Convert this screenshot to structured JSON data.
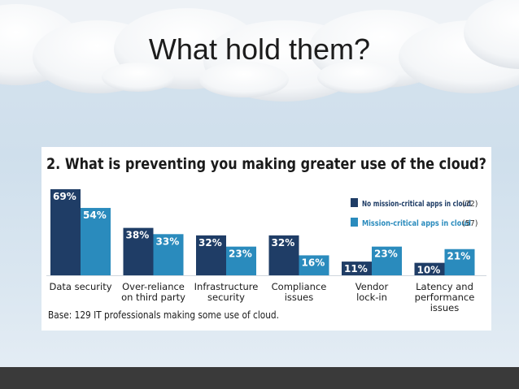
{
  "slide": {
    "title": "What hold them?"
  },
  "chart_data": {
    "type": "bar",
    "title": "2. What is preventing you making greater use of the cloud?",
    "categories": [
      [
        "Data security"
      ],
      [
        "Over-reliance",
        "on third party"
      ],
      [
        "Infrastructure",
        "security"
      ],
      [
        "Compliance",
        "issues"
      ],
      [
        "Vendor",
        "lock-in"
      ],
      [
        "Latency and",
        "performance",
        "issues"
      ]
    ],
    "series": [
      {
        "name": "No mission-critical apps in cloud",
        "count_label": "(72)",
        "color": "#1f3d66",
        "values": [
          69,
          38,
          32,
          32,
          11,
          10
        ]
      },
      {
        "name": "Mission-critical apps in cloud",
        "count_label": "(57)",
        "color": "#2a8bbd",
        "values": [
          54,
          33,
          23,
          16,
          23,
          21
        ]
      }
    ],
    "value_suffix": "%",
    "ylim": [
      0,
      69
    ],
    "grid": false,
    "legend_position": "right",
    "footnote": "Base: 129 IT professionals making some use of cloud."
  }
}
